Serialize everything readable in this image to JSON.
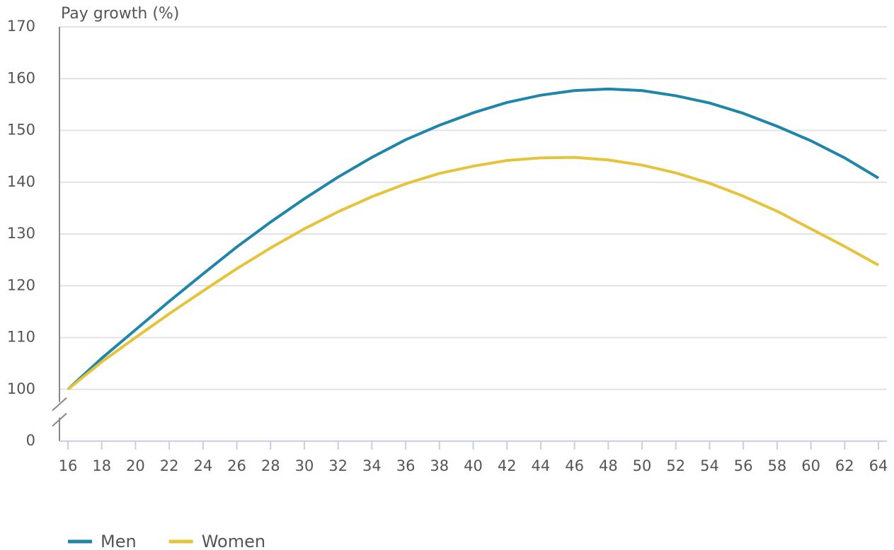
{
  "chart_data": {
    "type": "line",
    "y_axis_label": "Pay growth (%)",
    "x": [
      16,
      18,
      20,
      22,
      24,
      26,
      28,
      30,
      32,
      34,
      36,
      38,
      40,
      42,
      44,
      46,
      48,
      50,
      52,
      54,
      56,
      58,
      60,
      62,
      64
    ],
    "series": [
      {
        "name": "Men",
        "color": "#1f86a9",
        "values": [
          100,
          106,
          111.5,
          117,
          122.3,
          127.5,
          132.3,
          136.8,
          141,
          144.8,
          148.2,
          151,
          153.4,
          155.4,
          156.8,
          157.7,
          158,
          157.7,
          156.7,
          155.3,
          153.3,
          150.8,
          148,
          144.7,
          140.8
        ]
      },
      {
        "name": "Women",
        "color": "#e5c33a",
        "values": [
          100,
          105.3,
          110,
          114.6,
          119,
          123.3,
          127.3,
          131,
          134.3,
          137.2,
          139.7,
          141.7,
          143.1,
          144.2,
          144.7,
          144.8,
          144.3,
          143.3,
          141.8,
          139.8,
          137.3,
          134.4,
          131,
          127.6,
          124
        ]
      }
    ],
    "xlim": [
      16,
      64
    ],
    "xticks": [
      16,
      18,
      20,
      22,
      24,
      26,
      28,
      30,
      32,
      34,
      36,
      38,
      40,
      42,
      44,
      46,
      48,
      50,
      52,
      54,
      56,
      58,
      60,
      62,
      64
    ],
    "ylim": [
      0,
      170
    ],
    "yticks": [
      0,
      100,
      110,
      120,
      130,
      140,
      150,
      160,
      170
    ],
    "axis_break": true,
    "grid": true,
    "legend": "bottom-left"
  }
}
